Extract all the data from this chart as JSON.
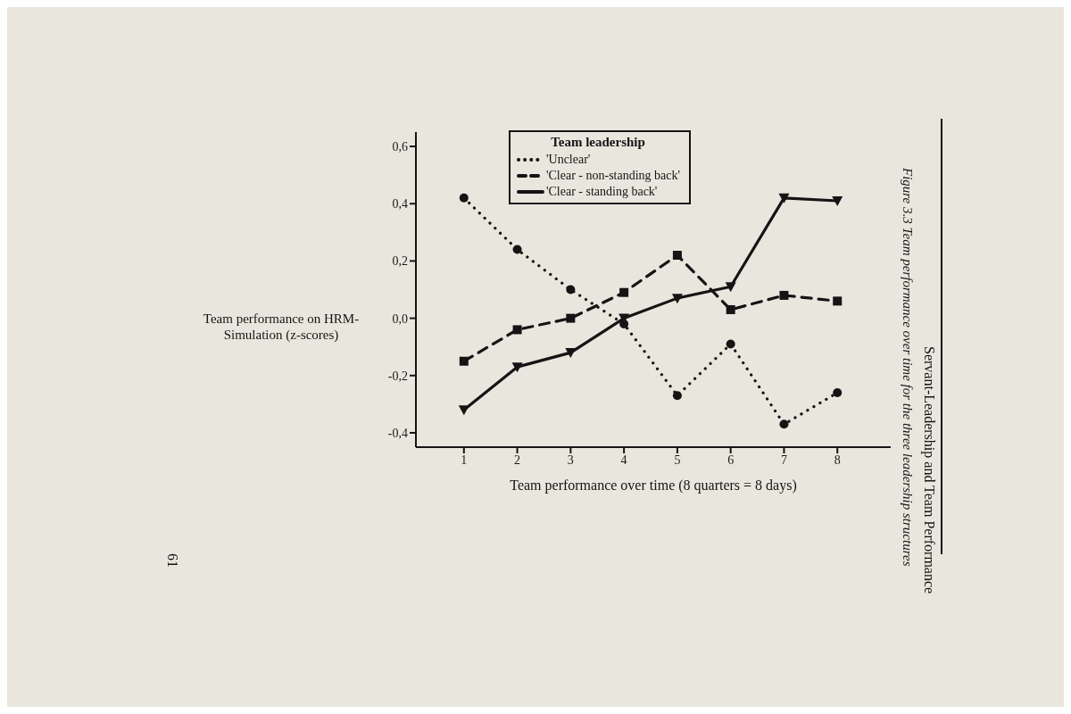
{
  "chart_data": {
    "type": "line",
    "title": "Figure 3.3 Team performance over time for the three leadership structures",
    "xlabel": "Team performance over time (8 quarters = 8 days)",
    "ylabel": "Team performance on HRM-Simulation (z-scores)",
    "legend_title": "Team leadership",
    "annotations": [
      "Servant-Leadership and Team Performance",
      "61"
    ],
    "x": [
      1,
      2,
      3,
      4,
      5,
      6,
      7,
      8
    ],
    "series": [
      {
        "name": "'Unclear'",
        "color": "#141414",
        "line_style": "dotted",
        "marker": "circle",
        "values": [
          0.42,
          0.24,
          0.1,
          -0.02,
          -0.27,
          -0.09,
          -0.37,
          -0.26
        ]
      },
      {
        "name": "'Clear - non-standing back'",
        "color": "#141414",
        "line_style": "dashed",
        "marker": "square",
        "values": [
          -0.15,
          -0.04,
          0.0,
          0.09,
          0.22,
          0.03,
          0.08,
          0.06
        ]
      },
      {
        "name": "'Clear - standing back'",
        "color": "#141414",
        "line_style": "solid",
        "marker": "triangle",
        "values": [
          -0.32,
          -0.17,
          -0.12,
          0.0,
          0.07,
          0.11,
          0.42,
          0.41
        ]
      }
    ],
    "xlim": [
      0.1,
      9
    ],
    "xticks": [
      1,
      2,
      3,
      4,
      5,
      6,
      7,
      8
    ],
    "ylim": [
      -0.45,
      0.65
    ],
    "yticks": [
      {
        "value": -0.4,
        "label": "-0,4"
      },
      {
        "value": -0.2,
        "label": "-0,2"
      },
      {
        "value": 0,
        "label": "0,0"
      },
      {
        "value": 0.2,
        "label": "0,2"
      },
      {
        "value": 0.4,
        "label": "0,4"
      },
      {
        "value": 0.6,
        "label": "0,6"
      }
    ],
    "grid": false,
    "legend": "top"
  }
}
